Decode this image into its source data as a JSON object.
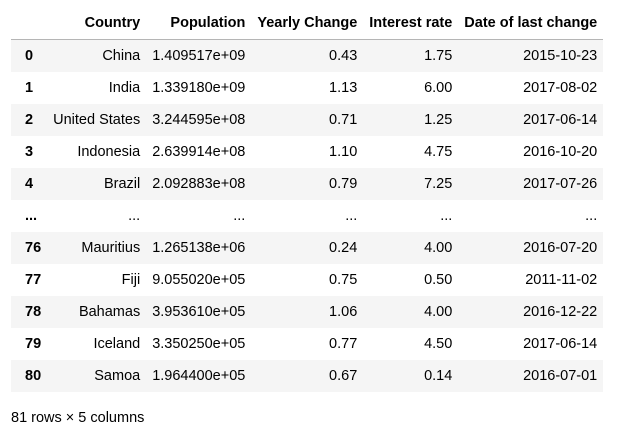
{
  "table": {
    "index_header": "",
    "columns": [
      "Country",
      "Population",
      "Yearly Change",
      "Interest rate",
      "Date of last change"
    ],
    "rows": [
      {
        "index": "0",
        "cells": [
          "China",
          "1.409517e+09",
          "0.43",
          "1.75",
          "2015-10-23"
        ]
      },
      {
        "index": "1",
        "cells": [
          "India",
          "1.339180e+09",
          "1.13",
          "6.00",
          "2017-08-02"
        ]
      },
      {
        "index": "2",
        "cells": [
          "United States",
          "3.244595e+08",
          "0.71",
          "1.25",
          "2017-06-14"
        ]
      },
      {
        "index": "3",
        "cells": [
          "Indonesia",
          "2.639914e+08",
          "1.10",
          "4.75",
          "2016-10-20"
        ]
      },
      {
        "index": "4",
        "cells": [
          "Brazil",
          "2.092883e+08",
          "0.79",
          "7.25",
          "2017-07-26"
        ]
      },
      {
        "index": "...",
        "cells": [
          "...",
          "...",
          "...",
          "...",
          "..."
        ]
      },
      {
        "index": "76",
        "cells": [
          "Mauritius",
          "1.265138e+06",
          "0.24",
          "4.00",
          "2016-07-20"
        ]
      },
      {
        "index": "77",
        "cells": [
          "Fiji",
          "9.055020e+05",
          "0.75",
          "0.50",
          "2011-11-02"
        ]
      },
      {
        "index": "78",
        "cells": [
          "Bahamas",
          "3.953610e+05",
          "1.06",
          "4.00",
          "2016-12-22"
        ]
      },
      {
        "index": "79",
        "cells": [
          "Iceland",
          "3.350250e+05",
          "0.77",
          "4.50",
          "2017-06-14"
        ]
      },
      {
        "index": "80",
        "cells": [
          "Samoa",
          "1.964400e+05",
          "0.67",
          "0.14",
          "2016-07-01"
        ]
      }
    ]
  },
  "footer": {
    "shape_text": "81 rows × 5 columns"
  }
}
